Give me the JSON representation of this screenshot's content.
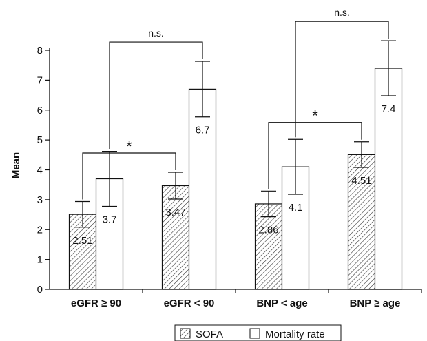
{
  "chart_data": {
    "type": "bar",
    "ylabel": "Mean",
    "ylim": [
      0,
      8
    ],
    "yticks": [
      0,
      1,
      2,
      3,
      4,
      5,
      6,
      7,
      8
    ],
    "categories": [
      "eGFR ≥ 90",
      "eGFR < 90",
      "BNP < age",
      "BNP ≥ age"
    ],
    "series": [
      {
        "name": "SOFA",
        "pattern": "hatched",
        "values": [
          2.51,
          3.47,
          2.86,
          4.51
        ],
        "labels": [
          "2.51",
          "3.47",
          "2.86",
          "4.51"
        ],
        "error": [
          0.43,
          0.45,
          0.43,
          0.43
        ]
      },
      {
        "name": "Mortality rate",
        "pattern": "white",
        "values": [
          3.7,
          6.7,
          4.1,
          7.4
        ],
        "labels": [
          "3.7",
          "6.7",
          "4.1",
          "7.4"
        ],
        "error": [
          0.92,
          0.93,
          0.92,
          0.92
        ]
      }
    ],
    "significance": [
      {
        "label": "*",
        "from": [
          0,
          0
        ],
        "to": [
          1,
          0
        ]
      },
      {
        "label": "n.s.",
        "from": [
          0,
          1
        ],
        "to": [
          1,
          1
        ]
      },
      {
        "label": "*",
        "from": [
          2,
          0
        ],
        "to": [
          3,
          0
        ]
      },
      {
        "label": "n.s.",
        "from": [
          2,
          1
        ],
        "to": [
          3,
          1
        ]
      }
    ],
    "legend_position": "bottom",
    "grid": false,
    "colors": {
      "axis": "#111111",
      "bar_fill": "#ffffff",
      "hatch": "#333333"
    }
  }
}
